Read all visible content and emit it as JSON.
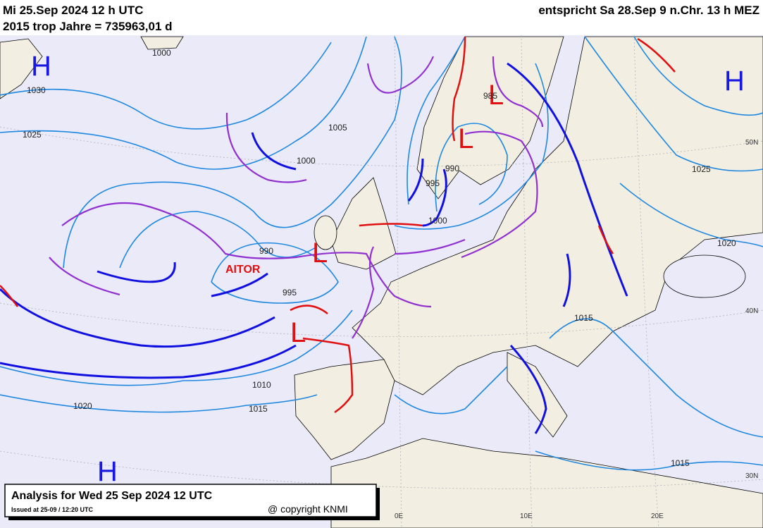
{
  "header": {
    "date_utc": "Mi 25.Sep 2024 12 h UTC",
    "trop_years": "2015 trop Jahre = 735963,01 d",
    "equivalent": "entspricht Sa 28.Sep 9 n.Chr. 13 h MEZ"
  },
  "pressure_centers": [
    "H",
    "H",
    "H",
    "L",
    "L",
    "L",
    "L"
  ],
  "storm_name": "AITOR",
  "isobar_labels": [
    "1030",
    "1025",
    "1020",
    "1005",
    "1000",
    "995",
    "990",
    "990",
    "995",
    "1000",
    "1010",
    "1015",
    "1025",
    "1020",
    "1015",
    "1015",
    "1000",
    "985"
  ],
  "grid_labels": [
    "50N",
    "40N",
    "30N",
    "0E",
    "10E",
    "20E"
  ],
  "footer": {
    "title": "Analysis for Wed 25 Sep 2024 12 UTC",
    "issued": "Issued at 25-09 / 12:20 UTC",
    "copyright": "@ copyright KNMI"
  }
}
